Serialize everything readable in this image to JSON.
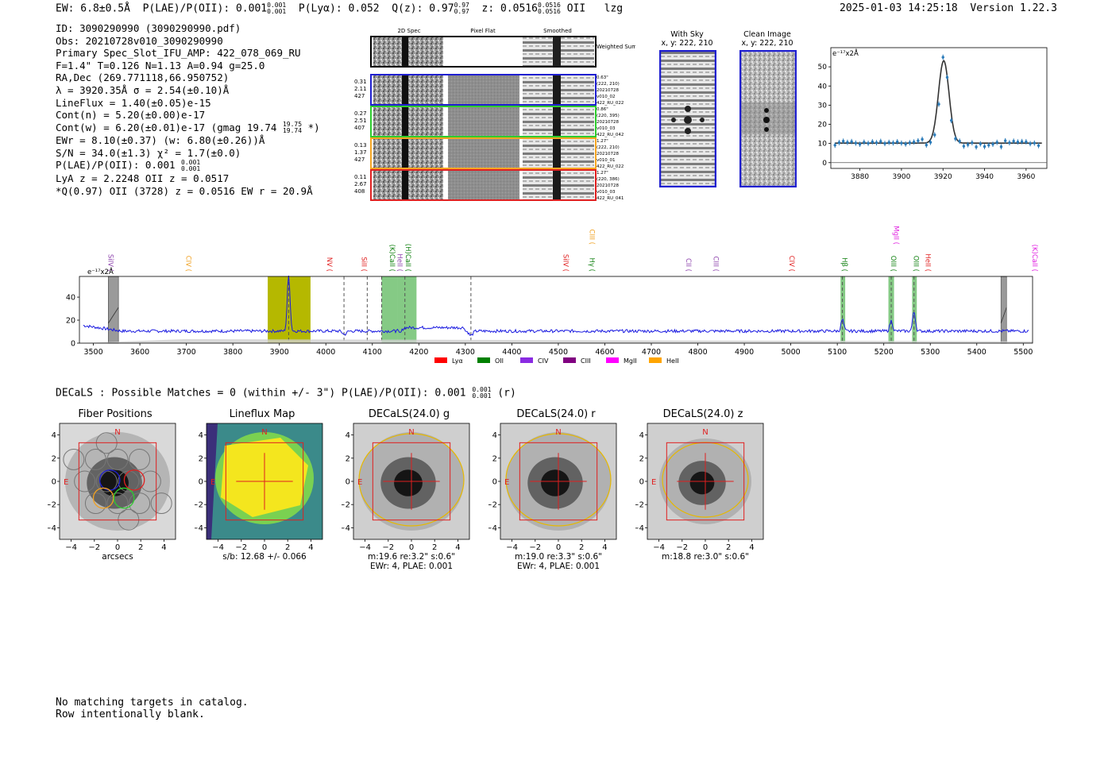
{
  "header": {
    "ew": "EW: 6.8±0.5Å",
    "plae_label": "P(LAE)/P(OII):",
    "plae_value": "0.001",
    "plae_hi": "0.001",
    "plae_lo": "0.001",
    "plya_label": "P(Lyα):",
    "plya_value": "0.052",
    "qz_label": "Q(z):",
    "qz_value": "0.97",
    "qz_hi": "0.97",
    "qz_lo": "0.97",
    "z_label": "z:",
    "z_value": "0.0516",
    "z_hi": "0.0516",
    "z_lo": "0.0516",
    "line": "OII",
    "flag": "lzg",
    "timestamp": "2025-01-03 14:25:18",
    "version": "Version 1.22.3"
  },
  "info": {
    "id": "ID: 3090290990 (3090290990.pdf)",
    "obs": "Obs: 20210728v010_3090290990",
    "primary": "Primary Spec_Slot_IFU_AMP: 422_078_069_RU",
    "params": "F=1.4\"  T=0.126  N=1.13  A=0.94  g=25.0",
    "radec": "RA,Dec (269.771118,66.950752)",
    "lambda": "λ = 3920.35Å  σ = 2.54(±0.10)Å",
    "lineflux": "LineFlux = 1.40(±0.05)e-15",
    "contn": "Cont(n) = 5.20(±0.00)e-17",
    "contw": "Cont(w) = 6.20(±0.01)e-17 (gmag 19.74",
    "contw_hi": "19.75",
    "contw_lo": "19.74",
    "contw_end": "*)",
    "ewr": "EWr = 8.10(±0.37) (w: 6.80(±0.26))Å",
    "sn": "S/N = 34.0(±1.3)  χ² = 1.7(±0.0)",
    "plae": "P(LAE)/P(OII): 0.001",
    "plae_hi": "0.001",
    "plae_lo": "0.001",
    "lya": "LyA z = 2.2248  OII z = 0.0517",
    "q": "*Q(0.97) OII (3728) z = 0.0516  EW r = 20.9Å"
  },
  "cutouts": {
    "col_2d": "2D Spec",
    "col_flat": "Pixel Flat",
    "col_smooth": "Smoothed",
    "weighted": "Weighted Sum",
    "rows": [
      {
        "stats": [
          "0.31",
          "2.11",
          "427"
        ],
        "meta": [
          "0.63\"",
          "(222, 210)",
          "20210728",
          "v010_02",
          "422_RU_022"
        ],
        "color": "#1f1fd0"
      },
      {
        "stats": [
          "0.27",
          "2.51",
          "407"
        ],
        "meta": [
          "0.86\"",
          "(220, 395)",
          "20210728",
          "v010_03",
          "422_RU_042"
        ],
        "color": "#2ecc2e"
      },
      {
        "stats": [
          "0.13",
          "1.37",
          "427"
        ],
        "meta": [
          "1.27\"",
          "(222, 210)",
          "20210728",
          "v010_01",
          "422_RU_022"
        ],
        "color": "#f5a623"
      },
      {
        "stats": [
          "0.11",
          "2.67",
          "408"
        ],
        "meta": [
          "1.27\"",
          "(220, 386)",
          "20210728",
          "v010_03",
          "422_RU_041"
        ],
        "color": "#e02020"
      }
    ],
    "with_sky_title": "With Sky",
    "with_sky_xy": "x, y: 222, 210",
    "clean_title": "Clean Image",
    "clean_xy": "x, y: 222, 210"
  },
  "colors": {
    "spectrum": "#1a1ae0",
    "fit": "#333333",
    "points": "#2b7bb9",
    "highlight": "#b5b800",
    "band": "#5cb85c",
    "red": "#e02020"
  },
  "chart_data": [
    {
      "type": "scatter",
      "name": "line-fit",
      "ylabel_unit": "e⁻¹⁷x2Å",
      "xlim": [
        3866,
        3970
      ],
      "ylim": [
        -3,
        60
      ],
      "xticks": [
        3880,
        3900,
        3920,
        3940,
        3960
      ],
      "yticks": [
        0,
        10,
        20,
        30,
        40,
        50
      ],
      "fit": {
        "center": 3920.35,
        "sigma": 2.54,
        "amplitude": 43,
        "continuum": 10.2
      },
      "points": [
        [
          3868,
          9.1
        ],
        [
          3870,
          10.5
        ],
        [
          3872,
          11.2
        ],
        [
          3874,
          10.6
        ],
        [
          3876,
          11.0
        ],
        [
          3878,
          10.2
        ],
        [
          3880,
          9.6
        ],
        [
          3882,
          10.7
        ],
        [
          3884,
          10.1
        ],
        [
          3886,
          10.9
        ],
        [
          3888,
          10.4
        ],
        [
          3890,
          11.1
        ],
        [
          3892,
          10.0
        ],
        [
          3894,
          10.6
        ],
        [
          3896,
          10.3
        ],
        [
          3898,
          10.9
        ],
        [
          3900,
          10.2
        ],
        [
          3902,
          9.7
        ],
        [
          3904,
          10.4
        ],
        [
          3906,
          10.8
        ],
        [
          3908,
          11.4
        ],
        [
          3910,
          12.2
        ],
        [
          3912,
          9.2
        ],
        [
          3914,
          10.6
        ],
        [
          3916,
          14.5
        ],
        [
          3918,
          30.5
        ],
        [
          3920,
          55.0
        ],
        [
          3922,
          44.5
        ],
        [
          3924,
          22.0
        ],
        [
          3926,
          12.5
        ],
        [
          3928,
          11.2
        ],
        [
          3930,
          8.6
        ],
        [
          3932,
          9.4
        ],
        [
          3934,
          10.4
        ],
        [
          3936,
          8.2
        ],
        [
          3938,
          9.8
        ],
        [
          3940,
          8.4
        ],
        [
          3942,
          9.1
        ],
        [
          3944,
          9.6
        ],
        [
          3946,
          10.6
        ],
        [
          3948,
          8.3
        ],
        [
          3950,
          11.4
        ],
        [
          3952,
          10.4
        ],
        [
          3954,
          11.2
        ],
        [
          3956,
          10.8
        ],
        [
          3958,
          11.0
        ],
        [
          3960,
          10.9
        ],
        [
          3962,
          9.9
        ],
        [
          3964,
          10.2
        ],
        [
          3966,
          8.9
        ]
      ]
    },
    {
      "type": "line",
      "name": "full-spectrum",
      "ylabel_unit": "e⁻¹⁷x2Å",
      "xlim": [
        3470,
        5520
      ],
      "ylim": [
        0,
        58
      ],
      "xticks": [
        3500,
        3600,
        3700,
        3800,
        3900,
        4000,
        4100,
        4200,
        4300,
        4400,
        4500,
        4600,
        4700,
        4800,
        4900,
        5000,
        5100,
        5200,
        5300,
        5400,
        5500
      ],
      "yticks": [
        0,
        20,
        40
      ],
      "continuum_level": 10.5,
      "peaks": [
        {
          "x": 3920,
          "height": 48,
          "width": 3
        },
        {
          "x": 5111,
          "height": 10,
          "width": 3
        },
        {
          "x": 5216,
          "height": 9,
          "width": 3
        },
        {
          "x": 5265,
          "height": 17,
          "width": 3
        }
      ],
      "dips": [
        {
          "x": 4159,
          "depth": 5
        },
        {
          "x": 4312,
          "depth": 4
        },
        {
          "x": 4040,
          "depth": 3
        }
      ],
      "dashed_lines": [
        3920,
        4039,
        4089,
        4120,
        4170,
        4312,
        5111,
        5216,
        5265
      ],
      "yellow_band": [
        3875,
        3967
      ],
      "green_bands": [
        [
          4120,
          4155
        ],
        [
          4155,
          4195
        ],
        [
          5107,
          5117
        ],
        [
          5210,
          5222
        ],
        [
          5261,
          5271
        ]
      ],
      "hatched_bands": [
        [
          3532,
          3554
        ],
        [
          5452,
          5464
        ]
      ],
      "line_labels": [
        {
          "name": "SiIV",
          "x": 3532,
          "color": "#8e44ad",
          "level": 0
        },
        {
          "name": "CIV",
          "x": 3700,
          "color": "#f0a020",
          "level": 0
        },
        {
          "name": "NV",
          "x": 4003,
          "color": "#e02020",
          "level": 0
        },
        {
          "name": "SiII",
          "x": 4077,
          "color": "#e02020",
          "level": 0
        },
        {
          "name": "(K)CaII",
          "x": 4138,
          "color": "#108010",
          "level": 0
        },
        {
          "name": "HeII",
          "x": 4154,
          "color": "#8e44ad",
          "level": 0
        },
        {
          "name": "(H)CaII",
          "x": 4172,
          "color": "#108010",
          "level": 0
        },
        {
          "name": "SiIV",
          "x": 4511,
          "color": "#e02020",
          "level": 0
        },
        {
          "name": "CIII",
          "x": 4568,
          "color": "#f0a020",
          "level": 1
        },
        {
          "name": "Hγ",
          "x": 4568,
          "color": "#108010",
          "level": 0
        },
        {
          "name": "CII",
          "x": 4775,
          "color": "#8e44ad",
          "level": 0
        },
        {
          "name": "CIII",
          "x": 4834,
          "color": "#8e44ad",
          "level": 0
        },
        {
          "name": "CIV",
          "x": 4997,
          "color": "#e02020",
          "level": 0
        },
        {
          "name": "Hβ",
          "x": 5111,
          "color": "#108010",
          "level": 0
        },
        {
          "name": "MgII",
          "x": 5222,
          "color": "#e020e0",
          "level": 1
        },
        {
          "name": "OIII",
          "x": 5216,
          "color": "#108010",
          "level": 0
        },
        {
          "name": "OIII",
          "x": 5265,
          "color": "#108010",
          "level": 0
        },
        {
          "name": "HeII",
          "x": 5290,
          "color": "#e02020",
          "level": 0
        },
        {
          "name": "(K)CaII",
          "x": 5520,
          "color": "#e020e0",
          "level": 0
        }
      ],
      "legend": [
        {
          "name": "Lyα",
          "color": "#ff0000"
        },
        {
          "name": "OII",
          "color": "#008000"
        },
        {
          "name": "CIV",
          "color": "#8a2be2"
        },
        {
          "name": "CIII",
          "color": "#800080"
        },
        {
          "name": "MgII",
          "color": "#ff00ff"
        },
        {
          "name": "HeII",
          "color": "#ffa500"
        }
      ]
    }
  ],
  "decals": {
    "summary": "DECaLS : Possible Matches = 0 (within +/- 3\")  P(LAE)/P(OII): 0.001",
    "summary_hi": "0.001",
    "summary_lo": "0.001",
    "summary_band": "(r)",
    "axis_ticks": [
      "−4",
      "−2",
      "0",
      "2",
      "4"
    ],
    "north": "N",
    "east": "E",
    "panels": [
      {
        "title": "Fiber Positions",
        "caption1": "arcsecs",
        "caption2": ""
      },
      {
        "title": "Lineflux Map",
        "caption1": "s/b: 12.68 +/- 0.066",
        "caption2": ""
      },
      {
        "title": "DECaLS(24.0) g",
        "caption1": "m:19.6  re:3.2\"  s:0.6\"",
        "caption2": "EWr: 4, PLAE: 0.001"
      },
      {
        "title": "DECaLS(24.0) r",
        "caption1": "m:19.0  re:3.3\"  s:0.6\"",
        "caption2": "EWr: 4, PLAE: 0.001"
      },
      {
        "title": "DECaLS(24.0) z",
        "caption1": "m:18.8  re:3.0\"  s:0.6\"",
        "caption2": ""
      }
    ]
  },
  "footer": {
    "line1": "No matching targets in catalog.",
    "line2": "Row intentionally blank."
  }
}
